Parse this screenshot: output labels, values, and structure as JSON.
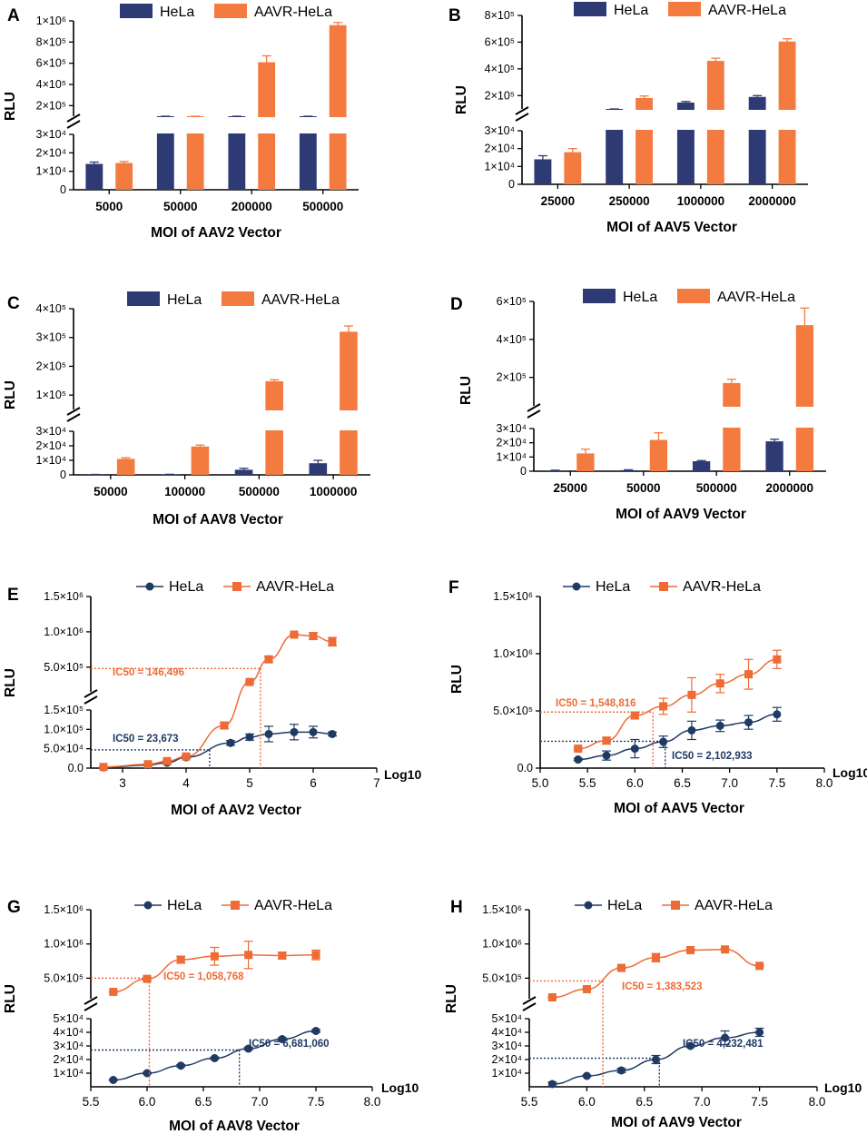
{
  "colors": {
    "hela": "#2e3a73",
    "aavr": "#f47b3f",
    "hela_line": "#1f3a63",
    "aavr_line": "#ee6b35",
    "axis": "#000000"
  },
  "legend": {
    "hela": "HeLa",
    "aavr": "AAVR-HeLa"
  },
  "chart_data": [
    {
      "panel": "A",
      "type": "bar",
      "xlabel": "MOI of AAV2 Vector",
      "ylabel": "RLU",
      "categories": [
        "5000",
        "50000",
        "200000",
        "500000"
      ],
      "series": [
        {
          "name": "HeLa",
          "values": [
            14000,
            65000,
            70000,
            75000
          ],
          "errors": [
            1000,
            5000,
            6000,
            6000
          ]
        },
        {
          "name": "AAVR-HeLa",
          "values": [
            14500,
            82000,
            610000,
            960000
          ],
          "errors": [
            800,
            6000,
            60000,
            25000
          ]
        }
      ],
      "axis_break": {
        "low_max": 30000,
        "high_min": 100000,
        "high_max": 1000000
      },
      "yticks_low": [
        "0",
        "1×10⁴",
        "2×10⁴",
        "3×10⁴"
      ],
      "yticks_high": [
        "2×10⁵",
        "4×10⁵",
        "6×10⁵",
        "8×10⁵",
        "1×10⁶"
      ]
    },
    {
      "panel": "B",
      "type": "bar",
      "xlabel": "MOI of AAV5 Vector",
      "ylabel": "RLU",
      "categories": [
        "25000",
        "250000",
        "1000000",
        "2000000"
      ],
      "series": [
        {
          "name": "HeLa",
          "values": [
            14000,
            75000,
            148000,
            190000
          ],
          "errors": [
            2000,
            6000,
            8000,
            10000
          ]
        },
        {
          "name": "AAVR-HeLa",
          "values": [
            18000,
            182000,
            460000,
            605000
          ],
          "errors": [
            2000,
            15000,
            20000,
            20000
          ]
        }
      ],
      "axis_break": {
        "low_max": 30000,
        "high_min": 100000,
        "high_max": 800000
      },
      "yticks_low": [
        "0",
        "1×10⁴",
        "2×10⁴",
        "3×10⁴"
      ],
      "yticks_high": [
        "2×10⁵",
        "4×10⁵",
        "6×10⁵",
        "8×10⁵"
      ]
    },
    {
      "panel": "C",
      "type": "bar",
      "xlabel": "MOI of AAV8 Vector",
      "ylabel": "RLU",
      "categories": [
        "50000",
        "100000",
        "500000",
        "1000000"
      ],
      "series": [
        {
          "name": "HeLa",
          "values": [
            200,
            300,
            3500,
            8000
          ],
          "errors": [
            100,
            100,
            1000,
            2000
          ]
        },
        {
          "name": "AAVR-HeLa",
          "values": [
            11000,
            19500,
            148000,
            320000
          ],
          "errors": [
            800,
            1000,
            5000,
            20000
          ]
        }
      ],
      "axis_break": {
        "low_max": 30000,
        "high_min": 50000,
        "high_max": 400000
      },
      "yticks_low": [
        "0",
        "1×10⁴",
        "2×10⁴",
        "3×10⁴"
      ],
      "yticks_high": [
        "1×10⁵",
        "2×10⁵",
        "3×10⁵",
        "4×10⁵"
      ]
    },
    {
      "panel": "D",
      "type": "bar",
      "xlabel": "MOI of AAV9 Vector",
      "ylabel": "RLU",
      "categories": [
        "25000",
        "50000",
        "500000",
        "2000000"
      ],
      "series": [
        {
          "name": "HeLa",
          "values": [
            500,
            700,
            7000,
            21000
          ],
          "errors": [
            200,
            300,
            500,
            1500
          ]
        },
        {
          "name": "AAVR-HeLa",
          "values": [
            12500,
            22000,
            170000,
            475000
          ],
          "errors": [
            3000,
            5000,
            20000,
            90000
          ]
        }
      ],
      "axis_break": {
        "low_max": 30000,
        "high_min": 50000,
        "high_max": 600000
      },
      "yticks_low": [
        "0",
        "1×10⁴",
        "2×10⁴",
        "3×10⁴"
      ],
      "yticks_high": [
        "2×10⁵",
        "4×10⁵",
        "6×10⁵"
      ]
    },
    {
      "panel": "E",
      "type": "scatter",
      "xlabel": "MOI of AAV2 Vector",
      "ylabel": "RLU",
      "xunit": "Log10",
      "xlim": [
        2.5,
        7
      ],
      "xticks": [
        "3",
        "4",
        "5",
        "6",
        "7"
      ],
      "axis_break": {
        "low_max": 150000,
        "high_min": 150000,
        "high_max": 1500000
      },
      "yticks_low": [
        "0.0",
        "5.0×10⁴",
        "1.0×10⁵",
        "1.5×10⁵"
      ],
      "yticks_high": [
        "5.0×10⁵",
        "1.0×10⁶",
        "1.5×10⁶"
      ],
      "series": [
        {
          "name": "HeLa",
          "x": [
            2.7,
            3.4,
            3.7,
            4.0,
            4.7,
            5.0,
            5.3,
            5.7,
            6.0,
            6.3
          ],
          "y": [
            2000,
            8000,
            14000,
            28000,
            65000,
            80000,
            88000,
            93000,
            93000,
            88000
          ],
          "errors": [
            1000,
            2000,
            3000,
            3000,
            6000,
            8000,
            20000,
            20000,
            15000,
            5000
          ],
          "ic50_label": "IC50 = 23,673",
          "ic50_x": 4.37,
          "ic50_y": 47000
        },
        {
          "name": "AAVR-HeLa",
          "x": [
            2.7,
            3.4,
            3.7,
            4.0,
            4.6,
            5.0,
            5.3,
            5.7,
            6.0,
            6.3
          ],
          "y": [
            3000,
            10000,
            18000,
            30000,
            110000,
            290000,
            610000,
            960000,
            940000,
            860000
          ],
          "errors": [
            1000,
            2000,
            3000,
            3000,
            8000,
            15000,
            40000,
            10000,
            50000,
            60000
          ],
          "ic50_label": "IC50 = 146,496",
          "ic50_x": 5.17,
          "ic50_y": 480000
        }
      ]
    },
    {
      "panel": "F",
      "type": "scatter",
      "xlabel": "MOI of AAV5 Vector",
      "ylabel": "RLU",
      "xunit": "Log10",
      "xlim": [
        5.0,
        8.0
      ],
      "xticks": [
        "5.0",
        "5.5",
        "6.0",
        "6.5",
        "7.0",
        "7.5",
        "8.0"
      ],
      "ylim": [
        0,
        1500000
      ],
      "yticks": [
        "0.0",
        "5.0×10⁵",
        "1.0×10⁶",
        "1.5×10⁶"
      ],
      "series": [
        {
          "name": "HeLa",
          "x": [
            5.4,
            5.7,
            6.0,
            6.3,
            6.6,
            6.9,
            7.2,
            7.5
          ],
          "y": [
            75000,
            110000,
            170000,
            230000,
            330000,
            370000,
            400000,
            470000
          ],
          "errors": [
            10000,
            40000,
            80000,
            50000,
            80000,
            50000,
            60000,
            60000
          ],
          "ic50_label": "IC50 = 2,102,933",
          "ic50_x": 6.32,
          "ic50_y": 235000
        },
        {
          "name": "AAVR-HeLa",
          "x": [
            5.4,
            5.7,
            6.0,
            6.3,
            6.6,
            6.9,
            7.2,
            7.5
          ],
          "y": [
            170000,
            240000,
            460000,
            540000,
            640000,
            740000,
            820000,
            950000
          ],
          "errors": [
            10000,
            30000,
            30000,
            70000,
            150000,
            80000,
            130000,
            80000
          ],
          "ic50_label": "IC50 = 1,548,816",
          "ic50_x": 6.19,
          "ic50_y": 490000
        }
      ]
    },
    {
      "panel": "G",
      "type": "scatter",
      "xlabel": "MOI of AAV8 Vector",
      "ylabel": "RLU",
      "xunit": "Log10",
      "xlim": [
        5.5,
        8.0
      ],
      "xticks": [
        "5.5",
        "6.0",
        "6.5",
        "7.0",
        "7.5",
        "8.0"
      ],
      "axis_break": {
        "low_max": 50000,
        "high_min": 200000,
        "high_max": 1500000
      },
      "yticks_low": [
        "1×10⁴",
        "2×10⁴",
        "3×10⁴",
        "4×10⁴",
        "5×10⁴"
      ],
      "yticks_high": [
        "5.0×10⁵",
        "1.0×10⁶",
        "1.5×10⁶"
      ],
      "series": [
        {
          "name": "HeLa",
          "x": [
            5.7,
            6.0,
            6.3,
            6.6,
            6.9,
            7.2,
            7.5
          ],
          "y": [
            5000,
            10000,
            15500,
            21000,
            28000,
            35000,
            41000
          ],
          "errors": [
            500,
            500,
            800,
            800,
            1000,
            1000,
            1000
          ],
          "ic50_label": "IC50 = 6,681,060",
          "ic50_x": 6.82,
          "ic50_y": 27000
        },
        {
          "name": "AAVR-HeLa",
          "x": [
            5.7,
            6.0,
            6.3,
            6.6,
            6.9,
            7.2,
            7.5
          ],
          "y": [
            300000,
            490000,
            770000,
            820000,
            840000,
            830000,
            840000
          ],
          "errors": [
            10000,
            20000,
            50000,
            130000,
            200000,
            50000,
            70000
          ],
          "ic50_label": "IC50 = 1,058,768",
          "ic50_x": 6.02,
          "ic50_y": 500000
        }
      ]
    },
    {
      "panel": "H",
      "type": "scatter",
      "xlabel": "MOI of AAV9 Vector",
      "ylabel": "RLU",
      "xunit": "Log10",
      "xlim": [
        5.5,
        8.0
      ],
      "xticks": [
        "5.5",
        "6.0",
        "6.5",
        "7.0",
        "7.5",
        "8.0"
      ],
      "axis_break": {
        "low_max": 50000,
        "high_min": 200000,
        "high_max": 1500000
      },
      "yticks_low": [
        "1×10⁴",
        "2×10⁴",
        "3×10⁴",
        "4×10⁴",
        "5×10⁴"
      ],
      "yticks_high": [
        "5.0×10⁵",
        "1.0×10⁶",
        "1.5×10⁶"
      ],
      "series": [
        {
          "name": "HeLa",
          "x": [
            5.7,
            6.0,
            6.3,
            6.6,
            6.9,
            7.2,
            7.5
          ],
          "y": [
            2000,
            8000,
            12000,
            20000,
            30000,
            36000,
            40000
          ],
          "errors": [
            1500,
            500,
            1500,
            3000,
            1000,
            5000,
            3000
          ],
          "ic50_label": "IC50 = 4,232,481",
          "ic50_x": 6.63,
          "ic50_y": 21000
        },
        {
          "name": "AAVR-HeLa",
          "x": [
            5.7,
            6.0,
            6.3,
            6.6,
            6.9,
            7.2,
            7.5
          ],
          "y": [
            220000,
            340000,
            650000,
            800000,
            910000,
            920000,
            680000
          ],
          "errors": [
            10000,
            10000,
            10000,
            60000,
            10000,
            10000,
            10000
          ],
          "ic50_label": "IC50 = 1,383,523",
          "ic50_x": 6.14,
          "ic50_y": 460000
        }
      ]
    }
  ]
}
